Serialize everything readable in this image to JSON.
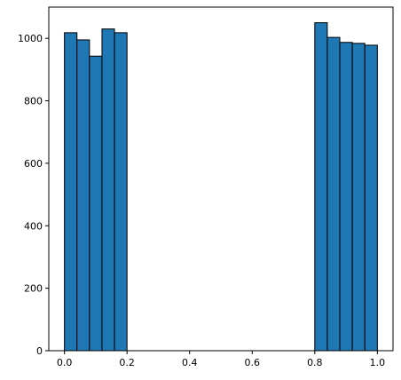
{
  "chart_data": {
    "type": "bar",
    "subtype": "histogram",
    "title": "",
    "xlabel": "",
    "ylabel": "",
    "xlim": [
      -0.05,
      1.05
    ],
    "ylim": [
      0,
      1100
    ],
    "xticks": [
      0.0,
      0.2,
      0.4,
      0.6,
      0.8,
      1.0
    ],
    "xtick_labels": [
      "0.0",
      "0.2",
      "0.4",
      "0.6",
      "0.8",
      "1.0"
    ],
    "yticks": [
      0,
      200,
      400,
      600,
      800,
      1000
    ],
    "ytick_labels": [
      "0",
      "200",
      "400",
      "600",
      "800",
      "1000"
    ],
    "grid": false,
    "legend": "none",
    "bar_color": "#1f77b4",
    "edge_color": "#000000",
    "bins": [
      {
        "x0": 0.0,
        "x1": 0.04,
        "count": 1018
      },
      {
        "x0": 0.04,
        "x1": 0.08,
        "count": 995
      },
      {
        "x0": 0.08,
        "x1": 0.12,
        "count": 943
      },
      {
        "x0": 0.12,
        "x1": 0.16,
        "count": 1030
      },
      {
        "x0": 0.16,
        "x1": 0.2,
        "count": 1018
      },
      {
        "x0": 0.8,
        "x1": 0.84,
        "count": 1050
      },
      {
        "x0": 0.84,
        "x1": 0.88,
        "count": 1003
      },
      {
        "x0": 0.88,
        "x1": 0.92,
        "count": 987
      },
      {
        "x0": 0.92,
        "x1": 0.96,
        "count": 984
      },
      {
        "x0": 0.96,
        "x1": 1.0,
        "count": 978
      }
    ]
  }
}
